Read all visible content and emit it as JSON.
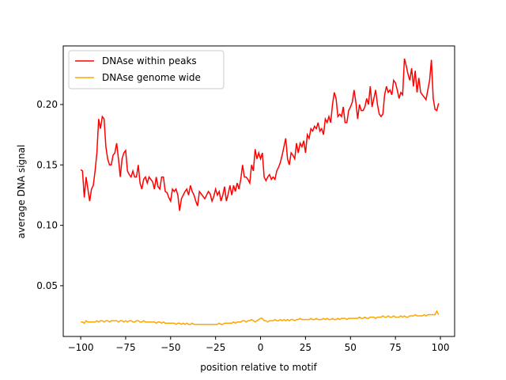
{
  "chart_data": {
    "type": "line",
    "xlabel": "position relative to motif",
    "ylabel": "average DNA signal",
    "legend": "upper left",
    "xlim": [
      -109.7,
      107.9
    ],
    "ylim": [
      0.008,
      0.2485
    ],
    "xticks": [
      {
        "value": -100,
        "label": "−100"
      },
      {
        "value": -75,
        "label": "−75"
      },
      {
        "value": -50,
        "label": "−50"
      },
      {
        "value": -25,
        "label": "−25"
      },
      0,
      25,
      50,
      75,
      100
    ],
    "yticks": [
      0.05,
      {
        "value": 0.1,
        "label": "0.10"
      },
      0.15,
      {
        "value": 0.2,
        "label": "0.20"
      }
    ],
    "x": [
      -100,
      -99,
      -98,
      -97,
      -96,
      -95,
      -94,
      -93,
      -92,
      -91,
      -90,
      -89,
      -88,
      -87,
      -86,
      -85,
      -84,
      -83,
      -82,
      -81,
      -80,
      -79,
      -78,
      -77,
      -76,
      -75,
      -74,
      -73,
      -72,
      -71,
      -70,
      -69,
      -68,
      -67,
      -66,
      -65,
      -64,
      -63,
      -62,
      -61,
      -60,
      -59,
      -58,
      -57,
      -56,
      -55,
      -54,
      -53,
      -52,
      -51,
      -50,
      -49,
      -48,
      -47,
      -46,
      -45,
      -44,
      -43,
      -42,
      -41,
      -40,
      -39,
      -38,
      -37,
      -36,
      -35,
      -34,
      -33,
      -32,
      -31,
      -30,
      -29,
      -28,
      -27,
      -26,
      -25,
      -24,
      -23,
      -22,
      -21,
      -20,
      -19,
      -18,
      -17,
      -16,
      -15,
      -14,
      -13,
      -12,
      -11,
      -10,
      -9,
      -8,
      -7,
      -6,
      -5,
      -4,
      -3,
      -2,
      -1,
      0,
      1,
      2,
      3,
      4,
      5,
      6,
      7,
      8,
      9,
      10,
      11,
      12,
      13,
      14,
      15,
      16,
      17,
      18,
      19,
      20,
      21,
      22,
      23,
      24,
      25,
      26,
      27,
      28,
      29,
      30,
      31,
      32,
      33,
      34,
      35,
      36,
      37,
      38,
      39,
      40,
      41,
      42,
      43,
      44,
      45,
      46,
      47,
      48,
      49,
      50,
      51,
      52,
      53,
      54,
      55,
      56,
      57,
      58,
      59,
      60,
      61,
      62,
      63,
      64,
      65,
      66,
      67,
      68,
      69,
      70,
      71,
      72,
      73,
      74,
      75,
      76,
      77,
      78,
      79,
      80,
      81,
      82,
      83,
      84,
      85,
      86,
      87,
      88,
      89,
      90,
      91,
      92,
      93,
      94,
      95,
      96,
      97,
      98,
      99
    ],
    "series": [
      {
        "name": "DNAse within peaks",
        "color": "#ff0000",
        "values": [
          0.146,
          0.145,
          0.123,
          0.14,
          0.13,
          0.12,
          0.13,
          0.133,
          0.145,
          0.16,
          0.188,
          0.18,
          0.19,
          0.188,
          0.165,
          0.155,
          0.15,
          0.15,
          0.158,
          0.16,
          0.168,
          0.155,
          0.14,
          0.155,
          0.16,
          0.162,
          0.145,
          0.142,
          0.14,
          0.145,
          0.14,
          0.14,
          0.15,
          0.135,
          0.13,
          0.138,
          0.14,
          0.135,
          0.14,
          0.138,
          0.136,
          0.13,
          0.14,
          0.132,
          0.13,
          0.14,
          0.14,
          0.128,
          0.127,
          0.123,
          0.12,
          0.13,
          0.128,
          0.13,
          0.125,
          0.112,
          0.122,
          0.125,
          0.128,
          0.13,
          0.125,
          0.133,
          0.128,
          0.125,
          0.12,
          0.116,
          0.128,
          0.126,
          0.124,
          0.122,
          0.125,
          0.128,
          0.126,
          0.12,
          0.124,
          0.13,
          0.125,
          0.128,
          0.12,
          0.125,
          0.132,
          0.12,
          0.126,
          0.133,
          0.125,
          0.133,
          0.128,
          0.135,
          0.13,
          0.138,
          0.15,
          0.14,
          0.14,
          0.138,
          0.135,
          0.15,
          0.145,
          0.163,
          0.155,
          0.16,
          0.155,
          0.16,
          0.14,
          0.137,
          0.14,
          0.142,
          0.138,
          0.14,
          0.138,
          0.145,
          0.148,
          0.152,
          0.158,
          0.165,
          0.172,
          0.155,
          0.15,
          0.16,
          0.158,
          0.155,
          0.168,
          0.16,
          0.168,
          0.165,
          0.17,
          0.16,
          0.175,
          0.172,
          0.18,
          0.178,
          0.182,
          0.18,
          0.185,
          0.178,
          0.18,
          0.175,
          0.188,
          0.185,
          0.19,
          0.185,
          0.2,
          0.21,
          0.205,
          0.19,
          0.192,
          0.19,
          0.198,
          0.185,
          0.185,
          0.195,
          0.198,
          0.202,
          0.212,
          0.202,
          0.188,
          0.2,
          0.195,
          0.195,
          0.198,
          0.205,
          0.2,
          0.215,
          0.198,
          0.205,
          0.212,
          0.2,
          0.192,
          0.19,
          0.192,
          0.208,
          0.215,
          0.21,
          0.212,
          0.208,
          0.22,
          0.218,
          0.212,
          0.205,
          0.21,
          0.208,
          0.238,
          0.232,
          0.225,
          0.22,
          0.23,
          0.215,
          0.228,
          0.21,
          0.222,
          0.21,
          0.208,
          0.206,
          0.204,
          0.212,
          0.22,
          0.237,
          0.205,
          0.196,
          0.195,
          0.201
        ]
      },
      {
        "name": "DNAse genome wide",
        "color": "#ffa500",
        "values": [
          0.02,
          0.02,
          0.019,
          0.021,
          0.02,
          0.02,
          0.02,
          0.02,
          0.02,
          0.021,
          0.02,
          0.021,
          0.021,
          0.02,
          0.021,
          0.021,
          0.02,
          0.021,
          0.021,
          0.021,
          0.021,
          0.02,
          0.021,
          0.021,
          0.02,
          0.021,
          0.02,
          0.021,
          0.021,
          0.02,
          0.02,
          0.021,
          0.021,
          0.02,
          0.02,
          0.021,
          0.02,
          0.02,
          0.02,
          0.02,
          0.02,
          0.02,
          0.019,
          0.02,
          0.02,
          0.019,
          0.02,
          0.019,
          0.019,
          0.019,
          0.019,
          0.019,
          0.019,
          0.018,
          0.019,
          0.019,
          0.018,
          0.019,
          0.018,
          0.019,
          0.018,
          0.018,
          0.019,
          0.018,
          0.018,
          0.018,
          0.018,
          0.018,
          0.018,
          0.018,
          0.018,
          0.018,
          0.018,
          0.018,
          0.018,
          0.018,
          0.018,
          0.019,
          0.018,
          0.018,
          0.019,
          0.019,
          0.019,
          0.019,
          0.019,
          0.02,
          0.019,
          0.02,
          0.02,
          0.02,
          0.021,
          0.021,
          0.02,
          0.021,
          0.021,
          0.022,
          0.021,
          0.02,
          0.021,
          0.022,
          0.023,
          0.023,
          0.021,
          0.021,
          0.02,
          0.021,
          0.021,
          0.021,
          0.022,
          0.021,
          0.021,
          0.022,
          0.021,
          0.022,
          0.021,
          0.022,
          0.021,
          0.022,
          0.022,
          0.021,
          0.022,
          0.022,
          0.023,
          0.022,
          0.022,
          0.022,
          0.022,
          0.022,
          0.023,
          0.022,
          0.022,
          0.023,
          0.022,
          0.022,
          0.022,
          0.023,
          0.022,
          0.023,
          0.022,
          0.022,
          0.023,
          0.022,
          0.022,
          0.023,
          0.022,
          0.023,
          0.023,
          0.023,
          0.022,
          0.023,
          0.023,
          0.023,
          0.023,
          0.023,
          0.023,
          0.024,
          0.023,
          0.023,
          0.024,
          0.023,
          0.023,
          0.024,
          0.024,
          0.024,
          0.023,
          0.024,
          0.024,
          0.024,
          0.025,
          0.024,
          0.024,
          0.025,
          0.024,
          0.024,
          0.025,
          0.024,
          0.024,
          0.024,
          0.025,
          0.024,
          0.025,
          0.024,
          0.024,
          0.025,
          0.025,
          0.025,
          0.026,
          0.025,
          0.025,
          0.025,
          0.025,
          0.026,
          0.025,
          0.026,
          0.026,
          0.026,
          0.026,
          0.026,
          0.029,
          0.026
        ]
      }
    ]
  }
}
